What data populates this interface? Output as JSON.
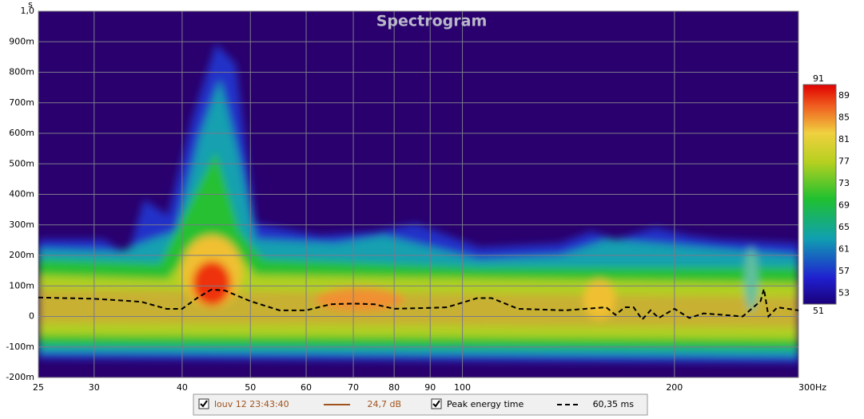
{
  "chart_data": {
    "type": "spectrogram",
    "title": "Spectrogram",
    "y_label": "s",
    "xscale": "log",
    "xlim": [
      25,
      300
    ],
    "xticks": [
      25,
      30,
      40,
      50,
      60,
      70,
      80,
      90,
      100,
      200,
      {
        "value": 300,
        "label": "300Hz"
      }
    ],
    "ylim": [
      -0.2,
      1.0
    ],
    "yticks": [
      {
        "value": -0.2,
        "label": "-200m"
      },
      {
        "value": -0.1,
        "label": "-100m"
      },
      0,
      {
        "value": 0.1,
        "label": "100m"
      },
      {
        "value": 0.2,
        "label": "200m"
      },
      {
        "value": 0.3,
        "label": "300m"
      },
      {
        "value": 0.4,
        "label": "400m"
      },
      {
        "value": 0.5,
        "label": "500m"
      },
      {
        "value": 0.6,
        "label": "600m"
      },
      {
        "value": 0.7,
        "label": "700m"
      },
      {
        "value": 0.8,
        "label": "800m"
      },
      {
        "value": 0.9,
        "label": "900m"
      },
      {
        "value": 1.0,
        "label": "1,0"
      }
    ],
    "grid": true,
    "colorbar": {
      "lim": [
        51,
        91
      ],
      "ticks": [
        91,
        89,
        85,
        81,
        77,
        73,
        69,
        65,
        61,
        57,
        53,
        51
      ]
    },
    "measurement": {
      "name": "louv 12 23:43:40",
      "color": "#a0521c",
      "value_label": "24,7 dB"
    },
    "x": [
      25,
      30,
      35,
      38,
      40,
      42,
      44,
      46,
      50,
      55,
      60,
      65,
      70,
      75,
      80,
      90,
      95,
      105,
      110,
      120,
      140,
      160,
      165,
      170,
      175,
      180,
      185,
      190,
      200,
      210,
      220,
      250,
      265,
      268,
      272,
      280,
      300
    ],
    "series": [
      {
        "name": "Peak energy time",
        "color": "#000000",
        "value_label": "60,35 ms",
        "values": [
          0.062,
          0.058,
          0.048,
          0.025,
          0.025,
          0.06,
          0.088,
          0.085,
          0.05,
          0.02,
          0.02,
          0.04,
          0.042,
          0.04,
          0.025,
          0.028,
          0.03,
          0.06,
          0.06,
          0.025,
          0.02,
          0.03,
          0.005,
          0.03,
          0.03,
          -0.01,
          0.02,
          -0.005,
          0.025,
          -0.005,
          0.01,
          0.0,
          0.05,
          0.09,
          0.0,
          0.03,
          0.02
        ]
      }
    ]
  }
}
